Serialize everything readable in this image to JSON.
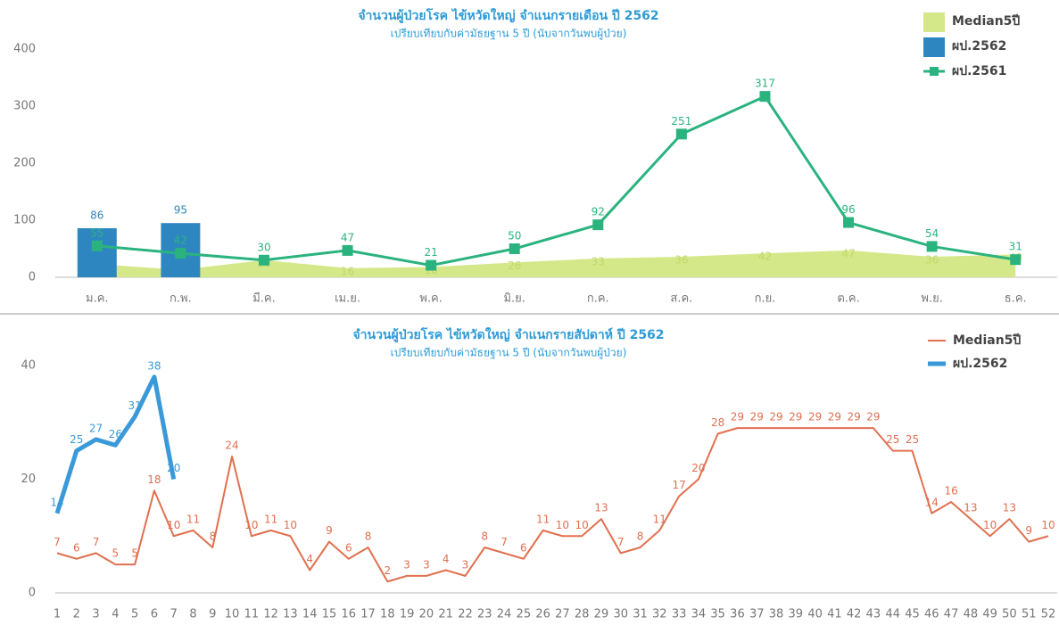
{
  "chart_data": [
    {
      "type": "combo",
      "title": "จำนวนผู้ป่วยโรค ไข้หวัดใหญ่ จำแนกรายเดือน ปี 2562",
      "subtitle": "เปรียบเทียบกับค่ามัธยฐาน 5 ปี (นับจากวันพบผู้ป่วย)",
      "categories": [
        "ม.ค.",
        "ก.พ.",
        "มี.ค.",
        "เม.ย.",
        "พ.ค.",
        "มิ.ย.",
        "ก.ค.",
        "ส.ค.",
        "ก.ย.",
        "ต.ค.",
        "พ.ย.",
        "ธ.ค."
      ],
      "series": [
        {
          "name": "Median5ปี",
          "kind": "area",
          "color": "#d4e88a",
          "values": [
            23,
            13,
            30,
            16,
            18,
            26,
            33,
            36,
            42,
            47,
            36,
            40
          ]
        },
        {
          "name": "ผป.2562",
          "kind": "bar",
          "color": "#2e86c1",
          "values": [
            86,
            95,
            null,
            null,
            null,
            null,
            null,
            null,
            null,
            null,
            null,
            null
          ]
        },
        {
          "name": "ผป.2561",
          "kind": "line",
          "color": "#2bb37f",
          "values": [
            55,
            42,
            30,
            47,
            21,
            50,
            92,
            251,
            317,
            96,
            54,
            31
          ]
        }
      ],
      "ylim": [
        0,
        400
      ],
      "yticks": [
        0,
        100,
        200,
        300,
        400
      ],
      "grid": false,
      "legend": "top-right"
    },
    {
      "type": "line",
      "title": "จำนวนผู้ป่วยโรค ไข้หวัดใหญ่ จำแนกรายสัปดาห์ ปี 2562",
      "subtitle": "เปรียบเทียบกับค่ามัธยฐาน 5 ปี (นับจากวันพบผู้ป่วย)",
      "x": [
        1,
        2,
        3,
        4,
        5,
        6,
        7,
        8,
        9,
        10,
        11,
        12,
        13,
        14,
        15,
        16,
        17,
        18,
        19,
        20,
        21,
        22,
        23,
        24,
        25,
        26,
        27,
        28,
        29,
        30,
        31,
        32,
        33,
        34,
        35,
        36,
        37,
        38,
        39,
        40,
        41,
        42,
        43,
        44,
        45,
        46,
        47,
        48,
        49,
        50,
        51,
        52
      ],
      "series": [
        {
          "name": "Median5ปี",
          "color": "#e07050",
          "width": 2,
          "values": [
            7,
            6,
            7,
            5,
            5,
            18,
            10,
            11,
            8,
            24,
            10,
            11,
            10,
            4,
            9,
            6,
            8,
            2,
            3,
            3,
            4,
            3,
            8,
            7,
            6,
            11,
            10,
            10,
            13,
            7,
            8,
            11,
            17,
            20,
            28,
            29,
            29,
            29,
            29,
            29,
            29,
            29,
            29,
            25,
            25,
            14,
            16,
            13,
            10,
            13,
            9,
            10
          ]
        },
        {
          "name": "ผป.2562",
          "color": "#3a9ad9",
          "width": 5,
          "values": [
            14,
            25,
            27,
            26,
            31,
            38,
            20,
            null,
            null,
            null,
            null,
            null,
            null,
            null,
            null,
            null,
            null,
            null,
            null,
            null,
            null,
            null,
            null,
            null,
            null,
            null,
            null,
            null,
            null,
            null,
            null,
            null,
            null,
            null,
            null,
            null,
            null,
            null,
            null,
            null,
            null,
            null,
            null,
            null,
            null,
            null,
            null,
            null,
            null,
            null,
            null,
            null
          ]
        }
      ],
      "xlim": [
        1,
        52
      ],
      "xticks": [
        1,
        2,
        3,
        4,
        5,
        6,
        7,
        8,
        9,
        10,
        11,
        12,
        13,
        14,
        15,
        16,
        17,
        18,
        19,
        20,
        21,
        22,
        23,
        24,
        25,
        26,
        27,
        28,
        29,
        30,
        31,
        32,
        33,
        34,
        35,
        36,
        37,
        38,
        39,
        40,
        41,
        42,
        43,
        44,
        45,
        46,
        47,
        48,
        49,
        50,
        51,
        52
      ],
      "ylim": [
        0,
        40
      ],
      "yticks": [
        0,
        20,
        40
      ],
      "grid": false,
      "legend": "top-right"
    }
  ]
}
